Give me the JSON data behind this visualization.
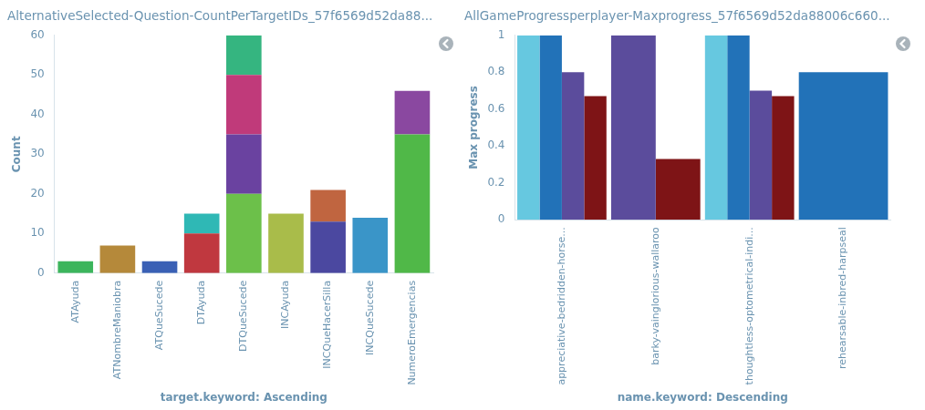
{
  "chart_data": [
    {
      "type": "bar",
      "title": "AlternativeSelected-Question-CountPerTargetIDs_57f6569d52da88...",
      "xlabel": "target.keyword: Ascending",
      "ylabel": "Count",
      "categories": [
        "ATAyuda",
        "ATNombreManiobra",
        "ATQueSucede",
        "DTAyuda",
        "DTQueSucede",
        "INCAyuda",
        "INCQueHacerSilla",
        "INCQueSucede",
        "NumeroEmergencias"
      ],
      "stacked": true,
      "ylim": [
        0,
        60
      ],
      "yticks": [
        0,
        10,
        20,
        30,
        40,
        50,
        60
      ],
      "grid": false,
      "legend": false,
      "series": [
        {
          "colors": [
            "#3cb55c",
            "#b5893a",
            "#3a60b5",
            "#c0383f",
            "#6cc04a",
            "#a9bc4a",
            "#4b48a0",
            "#3a95c8",
            "#50b848"
          ],
          "values": [
            3,
            7,
            3,
            10,
            20,
            15,
            13,
            14,
            35
          ]
        },
        {
          "colors": [
            null,
            null,
            null,
            "#2fb8b5",
            "#6a42a0",
            null,
            "#c06540",
            null,
            "#8a48a0"
          ],
          "values": [
            null,
            null,
            null,
            5,
            15,
            null,
            8,
            null,
            11
          ]
        },
        {
          "colors": [
            null,
            null,
            null,
            null,
            "#c03a7a",
            null,
            null,
            null,
            null
          ],
          "values": [
            null,
            null,
            null,
            null,
            15,
            null,
            null,
            null,
            null
          ]
        },
        {
          "colors": [
            null,
            null,
            null,
            null,
            "#35b580",
            null,
            null,
            null,
            null
          ],
          "values": [
            null,
            null,
            null,
            null,
            10,
            null,
            null,
            null,
            null
          ]
        }
      ]
    },
    {
      "type": "bar",
      "title": "AllGameProgressperplayer-Maxprogress_57f6569d52da88006c660...",
      "xlabel": "name.keyword: Descending",
      "ylabel": "Max progress",
      "categories": [
        "appreciative-bedridden-horse...",
        "barky-vainglorious-wallaroo",
        "thoughtless-optometrical-indi...",
        "rehearsable-inbred-harpseal"
      ],
      "ylim": [
        0,
        1
      ],
      "yticks": [
        0,
        0.2,
        0.4,
        0.6,
        0.8,
        1
      ],
      "grid": false,
      "legend": false,
      "series": [
        {
          "color": "#66c8e0",
          "values": [
            1,
            null,
            1,
            null
          ]
        },
        {
          "color": "#2272b8",
          "values": [
            1,
            null,
            1,
            0.8
          ]
        },
        {
          "color": "#5b4c9c",
          "values": [
            0.8,
            1,
            0.7,
            null
          ]
        },
        {
          "color": "#7e1416",
          "values": [
            0.67,
            0.33,
            0.67,
            null
          ]
        }
      ]
    }
  ]
}
